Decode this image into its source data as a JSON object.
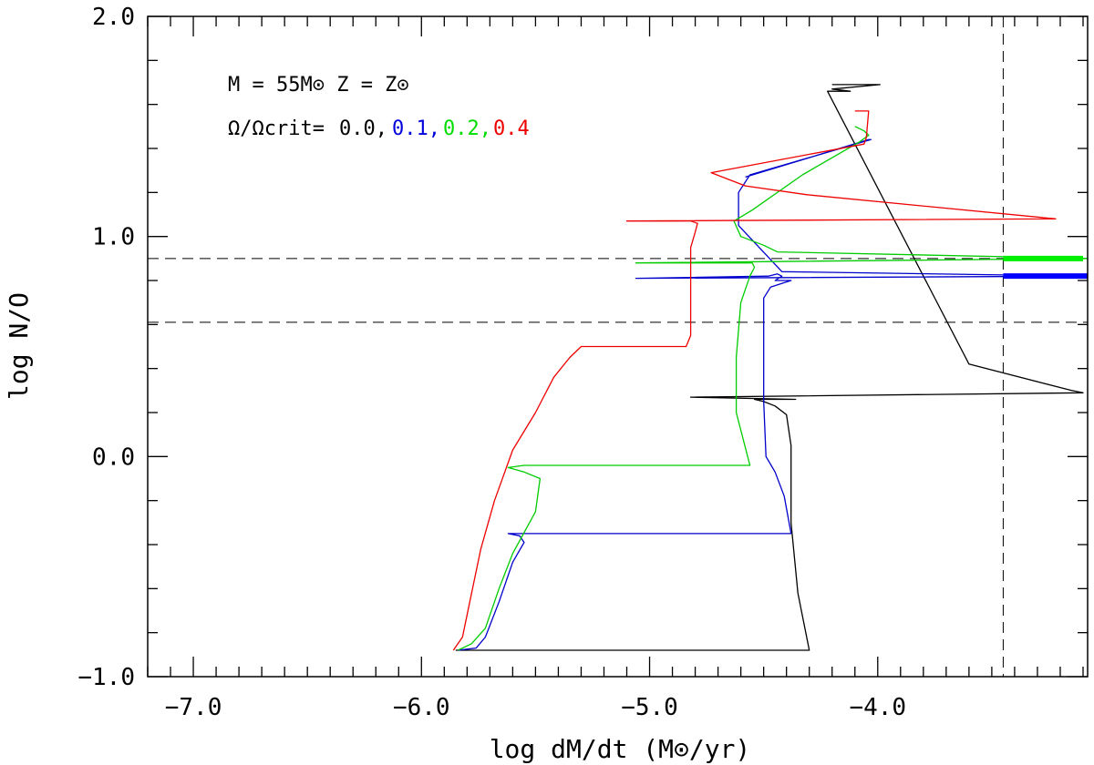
{
  "chart_data": {
    "type": "line",
    "title": "",
    "xlabel": "log  dM/dt  (M⊙/yr)",
    "ylabel": "log  N/O",
    "xlim": [
      -7.2,
      -3.08
    ],
    "ylim": [
      -1.0,
      2.0
    ],
    "x_ticks": [
      -7.0,
      -6.0,
      -5.0,
      -4.0
    ],
    "x_tick_labels": [
      "−7.0",
      "−6.0",
      "−5.0",
      "−4.0"
    ],
    "y_ticks": [
      -1.0,
      0.0,
      1.0,
      2.0
    ],
    "y_tick_labels": [
      "−1.0",
      "0.0",
      "1.0",
      "2.0"
    ],
    "grid": false,
    "annotations": {
      "model_line": "M  =  55M⊙  Z  =  Z⊙",
      "rotation_prefix": "Ω/Ωcrit=",
      "rotation_values": [
        "0.0,",
        "0.1,",
        "0.2,",
        "0.4"
      ]
    },
    "reference_lines": {
      "horizontal_y": [
        0.9,
        0.61
      ],
      "vertical_x": [
        -3.45
      ]
    },
    "series": [
      {
        "color": "#000000",
        "x": [
          -5.85,
          -5.8,
          -4.3,
          -4.35,
          -4.38,
          -4.38,
          -4.4,
          -4.45,
          -4.5,
          -4.54,
          -4.36,
          -4.82,
          -3.1,
          -3.15,
          -3.6,
          -4.22,
          -4.12,
          -4.2,
          -3.99,
          -4.2
        ],
        "y": [
          -0.88,
          -0.88,
          -0.88,
          -0.62,
          -0.3,
          0.05,
          0.19,
          0.23,
          0.25,
          0.26,
          0.26,
          0.27,
          0.29,
          0.3,
          0.42,
          1.66,
          1.66,
          1.67,
          1.69,
          1.69
        ]
      },
      {
        "color": "#0000cc",
        "x": [
          -5.84,
          -5.76,
          -5.72,
          -5.66,
          -5.6,
          -5.55,
          -5.57,
          -5.62,
          -4.38,
          -4.41,
          -4.45,
          -4.49,
          -4.5,
          -4.5,
          -4.5,
          -4.47,
          -4.41,
          -4.38,
          -4.45,
          -4.42,
          -4.44,
          -4.48,
          -5.06,
          -3.08,
          -4.42,
          -4.61,
          -4.61,
          -4.56,
          -4.03,
          -4.04,
          -4.58
        ],
        "y": [
          -0.88,
          -0.87,
          -0.82,
          -0.66,
          -0.48,
          -0.39,
          -0.36,
          -0.35,
          -0.35,
          -0.18,
          -0.07,
          0.0,
          0.25,
          0.5,
          0.72,
          0.77,
          0.79,
          0.8,
          0.8,
          0.82,
          0.83,
          0.82,
          0.81,
          0.82,
          0.84,
          1.05,
          1.2,
          1.28,
          1.44,
          1.44,
          1.27
        ]
      },
      {
        "color": "#00cc00",
        "x": [
          -5.84,
          -5.78,
          -5.72,
          -5.66,
          -5.6,
          -5.5,
          -5.48,
          -5.55,
          -5.62,
          -5.55,
          -4.56,
          -4.62,
          -4.62,
          -4.6,
          -4.56,
          -4.54,
          -4.55,
          -4.6,
          -5.06,
          -3.08,
          -4.44,
          -4.5,
          -4.6,
          -4.63,
          -4.55,
          -4.33,
          -4.08,
          -4.04,
          -4.06,
          -4.1
        ],
        "y": [
          -0.88,
          -0.85,
          -0.78,
          -0.6,
          -0.44,
          -0.25,
          -0.1,
          -0.07,
          -0.05,
          -0.04,
          -0.04,
          0.2,
          0.45,
          0.7,
          0.82,
          0.86,
          0.88,
          0.88,
          0.88,
          0.9,
          0.93,
          0.96,
          1.0,
          1.07,
          1.12,
          1.28,
          1.43,
          1.46,
          1.48,
          1.5
        ]
      },
      {
        "color": "#ee0000",
        "x": [
          -5.86,
          -5.82,
          -5.78,
          -5.74,
          -5.68,
          -5.6,
          -5.5,
          -5.42,
          -5.35,
          -5.3,
          -4.84,
          -4.82,
          -4.82,
          -4.82,
          -4.8,
          -4.79,
          -4.82,
          -5.1,
          -3.22,
          -4.31,
          -4.58,
          -4.73,
          -4.06,
          -4.05,
          -4.04,
          -4.1
        ],
        "y": [
          -0.88,
          -0.82,
          -0.62,
          -0.42,
          -0.2,
          0.03,
          0.2,
          0.36,
          0.45,
          0.5,
          0.5,
          0.55,
          0.75,
          0.95,
          1.02,
          1.06,
          1.07,
          1.07,
          1.08,
          1.19,
          1.23,
          1.29,
          1.42,
          1.45,
          1.57,
          1.57
        ]
      }
    ],
    "thick_segments": [
      {
        "color": "#00ee00",
        "x": [
          -3.45,
          -3.1
        ],
        "y": [
          0.9,
          0.9
        ]
      },
      {
        "color": "#0000ff",
        "x": [
          -3.45,
          -3.08
        ],
        "y": [
          0.82,
          0.82
        ]
      }
    ]
  }
}
